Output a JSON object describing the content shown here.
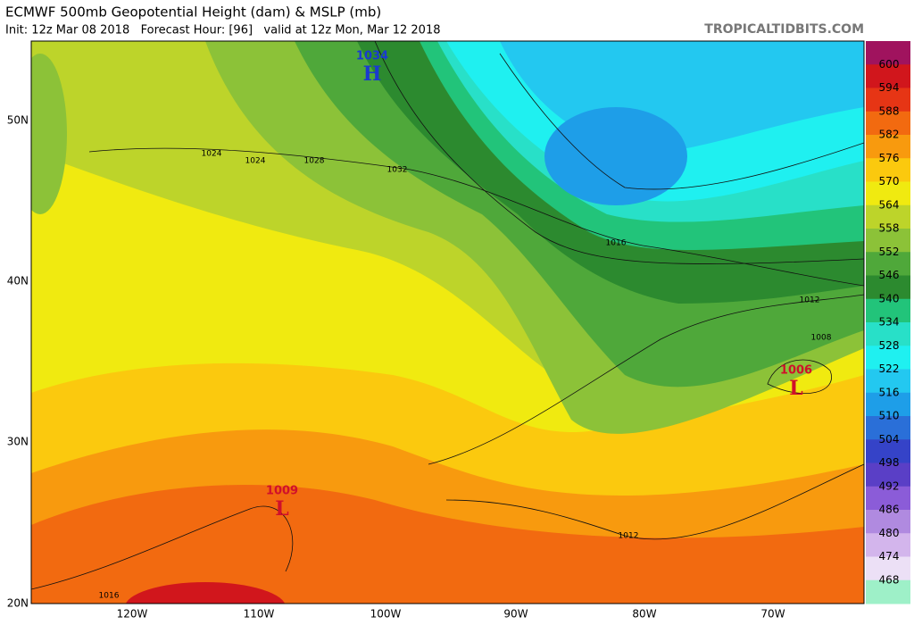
{
  "header": {
    "title": "ECMWF 500mb Geopotential Height (dam) & MSLP (mb)",
    "subtitle": "Init: 12z Mar 08 2018   Forecast Hour: [96]   valid at 12z Mon, Mar 12 2018",
    "source": "TROPICALTIDBITS.COM"
  },
  "map": {
    "lat_labels": [
      "50N",
      "40N",
      "30N",
      "20N"
    ],
    "lon_labels": [
      "120W",
      "110W",
      "100W",
      "90W",
      "80W",
      "70W"
    ],
    "pressure_centers": [
      {
        "symbol": "H",
        "value": "1034"
      },
      {
        "symbol": "L",
        "value": "1006"
      },
      {
        "symbol": "L",
        "value": "1009"
      }
    ],
    "contour_labels": [
      "1024",
      "1024",
      "1028",
      "1032",
      "1016",
      "1012",
      "1008",
      "1012",
      "1016"
    ]
  },
  "colorbar": {
    "labels": [
      "600",
      "594",
      "588",
      "582",
      "576",
      "570",
      "564",
      "558",
      "552",
      "546",
      "540",
      "534",
      "528",
      "522",
      "516",
      "510",
      "504",
      "498",
      "492",
      "486",
      "480",
      "474",
      "468"
    ],
    "colors": [
      "#a0135e",
      "#d1161c",
      "#e63515",
      "#f26a10",
      "#f89a0e",
      "#fbc90e",
      "#f0ea10",
      "#bdd42a",
      "#8cc238",
      "#4fa83a",
      "#2c8a2f",
      "#22c47a",
      "#28e0c8",
      "#1ff0f0",
      "#23c8f0",
      "#1e9ee8",
      "#2a6fd8",
      "#3543c8",
      "#5a3fc6",
      "#8b5cd8",
      "#b08ae0",
      "#d3b5ec",
      "#ece0f6",
      "#9ef0c8"
    ]
  }
}
